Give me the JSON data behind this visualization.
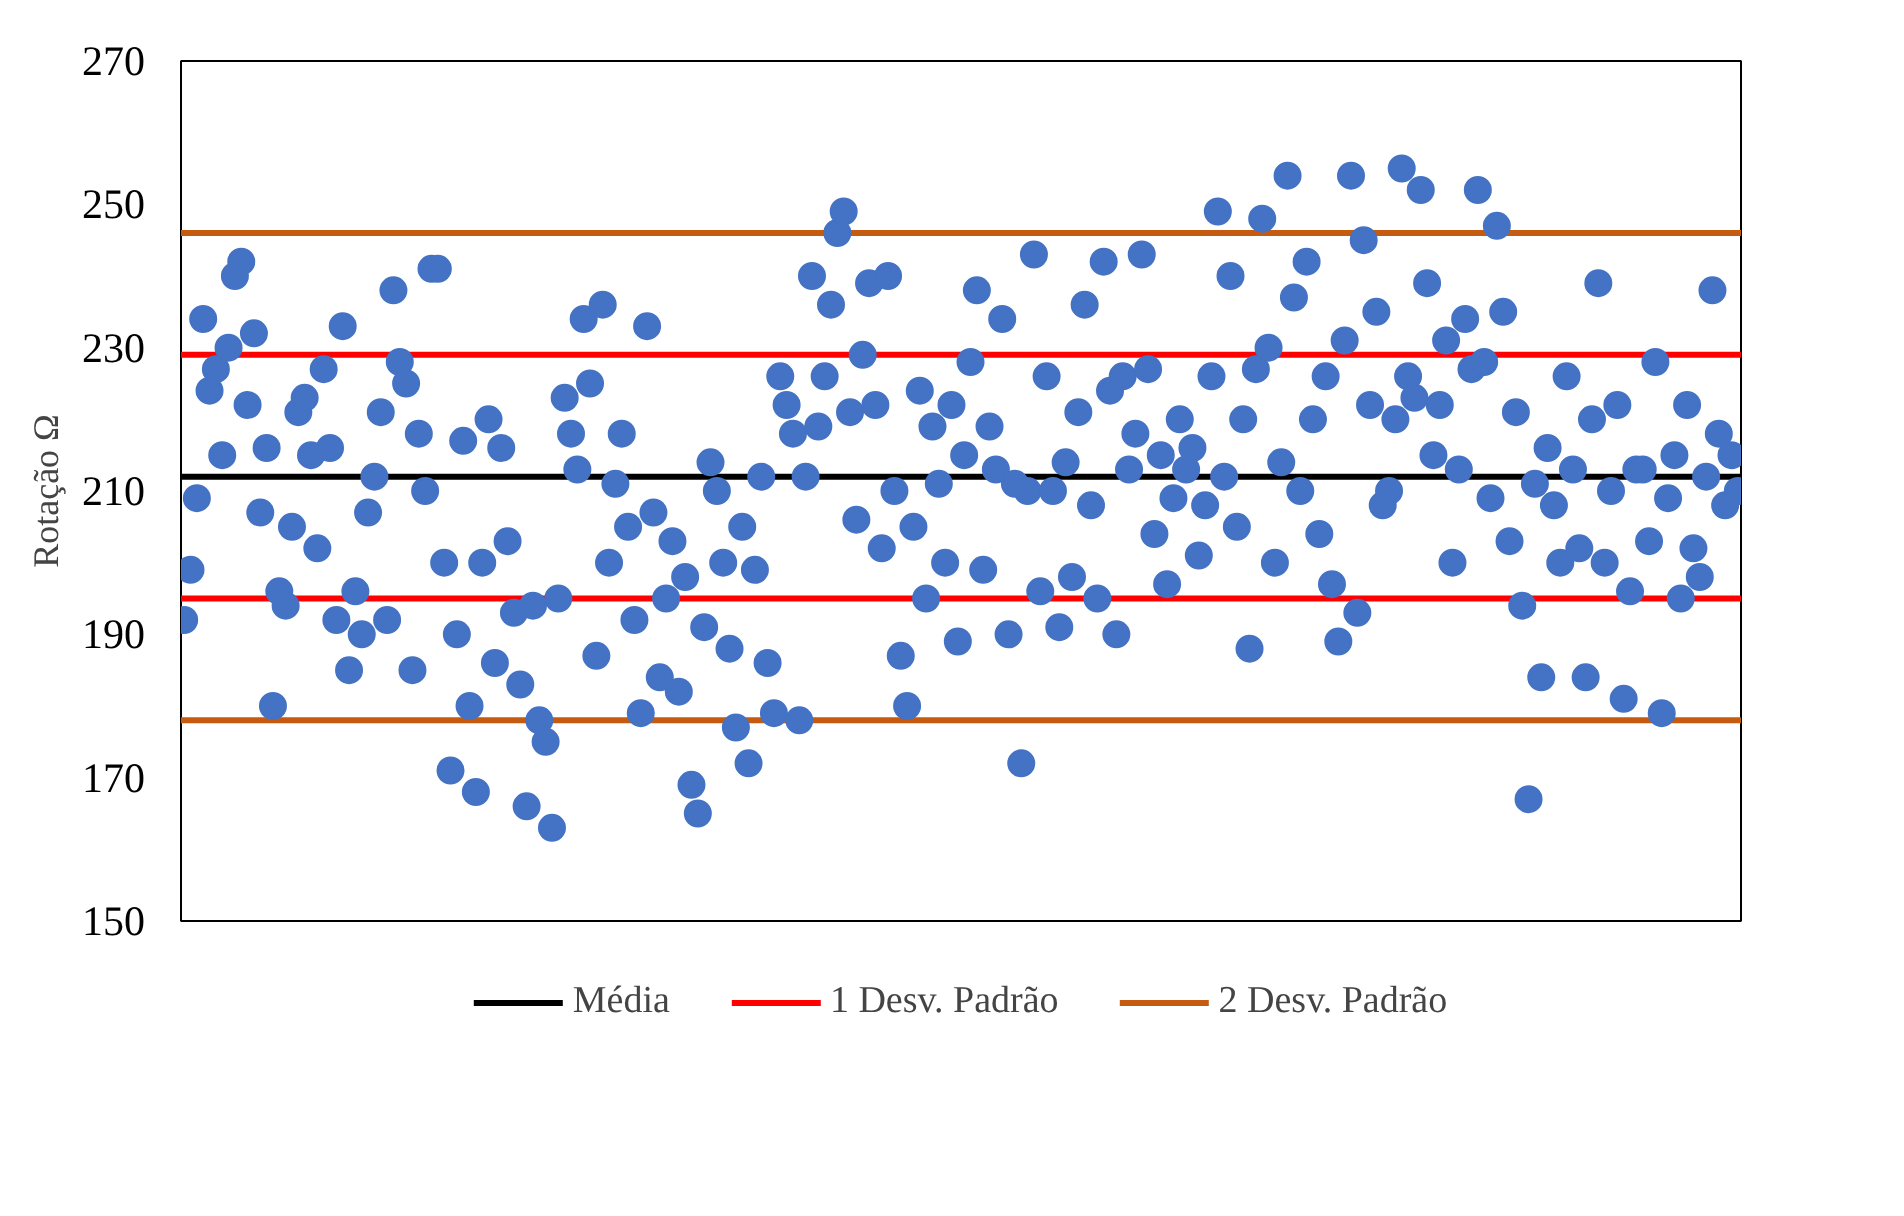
{
  "chart_data": {
    "type": "scatter",
    "ylabel": "Rotação Ω",
    "ylim": [
      150,
      270
    ],
    "yticks": [
      150,
      170,
      190,
      210,
      230,
      250,
      270
    ],
    "tick_labels": "y",
    "grid": false,
    "legend": "bottom",
    "marker": "circle",
    "color": "#4472c4",
    "categories": [
      null,
      null,
      null,
      null,
      null,
      null,
      null,
      null,
      null,
      null,
      null,
      null,
      null,
      null,
      null,
      null,
      null,
      null,
      null,
      null,
      null,
      null,
      null,
      null,
      null,
      null,
      null,
      null,
      null,
      null,
      null,
      null,
      null,
      null,
      null,
      null,
      null,
      null,
      null,
      null,
      null,
      null,
      null,
      null,
      null,
      null,
      null,
      null,
      null,
      null,
      null,
      null,
      null,
      null,
      null,
      null,
      null,
      null,
      null,
      null,
      null,
      null,
      null,
      null,
      null,
      null,
      null,
      null,
      null,
      null,
      null,
      null,
      null,
      null,
      null,
      null,
      null,
      null,
      null,
      null,
      null,
      null,
      null,
      null,
      null,
      null,
      null,
      null,
      null,
      null,
      null,
      null,
      null,
      null,
      null,
      null,
      null,
      null,
      null,
      null,
      null,
      null,
      null,
      null,
      null,
      null,
      null,
      null,
      null,
      null,
      null,
      null,
      null,
      null,
      null,
      null,
      null,
      null,
      null,
      null,
      null,
      null,
      null,
      null,
      null,
      null,
      null,
      null,
      null,
      null,
      null,
      null,
      null,
      null,
      null,
      null,
      null,
      null,
      null,
      null,
      null,
      null,
      null,
      null,
      null,
      null,
      null,
      null,
      null,
      null,
      null,
      null,
      null,
      null,
      null,
      null,
      null,
      null,
      null,
      null,
      null,
      null,
      null,
      null,
      null,
      null,
      null,
      null,
      null,
      null,
      null,
      null,
      null,
      null,
      null,
      null,
      null,
      null,
      null,
      null,
      null,
      null,
      null,
      null,
      null,
      null,
      null,
      null,
      null,
      null,
      null,
      null,
      null,
      null,
      null,
      null,
      null,
      null,
      null,
      null,
      null,
      null,
      null,
      null,
      null,
      null,
      null,
      null,
      null,
      null,
      null,
      null,
      null,
      null,
      null,
      null,
      null,
      null,
      null,
      null,
      null,
      null,
      null,
      null,
      null,
      null,
      null,
      null,
      null,
      null,
      null,
      null,
      null,
      null,
      null,
      null,
      null,
      null,
      null,
      null,
      null,
      null,
      null,
      null,
      null,
      null
    ],
    "values": [
      192,
      199,
      209,
      234,
      224,
      227,
      215,
      230,
      240,
      242,
      222,
      232,
      207,
      216,
      180,
      196,
      194,
      205,
      221,
      223,
      215,
      202,
      227,
      216,
      192,
      233,
      185,
      196,
      190,
      207,
      212,
      221,
      192,
      238,
      228,
      225,
      185,
      218,
      210,
      241,
      241,
      200,
      171,
      190,
      217,
      180,
      168,
      200,
      220,
      186,
      216,
      203,
      193,
      183,
      166,
      194,
      178,
      175,
      163,
      195,
      223,
      218,
      213,
      234,
      225,
      187,
      236,
      200,
      211,
      218,
      205,
      192,
      179,
      233,
      207,
      184,
      195,
      203,
      182,
      198,
      169,
      165,
      191,
      214,
      210,
      200,
      188,
      177,
      205,
      172,
      199,
      212,
      186,
      179,
      226,
      222,
      218,
      178,
      212,
      240,
      219,
      226,
      236,
      246,
      249,
      221,
      206,
      229,
      239,
      222,
      202,
      240,
      210,
      187,
      180,
      205,
      224,
      195,
      219,
      211,
      200,
      222,
      189,
      215,
      228,
      238,
      199,
      219,
      213,
      234,
      190,
      211,
      172,
      210,
      243,
      196,
      226,
      210,
      191,
      214,
      198,
      221,
      236,
      208,
      195,
      242,
      224,
      190,
      226,
      213,
      218,
      243,
      227,
      204,
      215,
      197,
      209,
      220,
      213,
      216,
      201,
      208,
      226,
      249,
      212,
      240,
      205,
      220,
      188,
      227,
      248,
      230,
      200,
      214,
      254,
      237,
      210,
      242,
      220,
      204,
      226,
      197,
      189,
      231,
      254,
      193,
      245,
      222,
      235,
      208,
      210,
      220,
      255,
      226,
      223,
      252,
      239,
      215,
      222,
      231,
      200,
      213,
      234,
      227,
      252,
      228,
      209,
      247,
      235,
      203,
      221,
      194,
      167,
      211,
      184,
      216,
      208,
      200,
      226,
      213,
      202,
      184,
      220,
      239,
      200,
      210,
      222,
      181,
      196,
      213,
      213,
      203,
      228,
      179,
      209,
      215,
      195,
      222,
      202,
      198,
      212,
      238,
      218,
      208,
      215,
      210
    ],
    "ref_lines": [
      {
        "axis": "y",
        "value": 212,
        "label": "Média",
        "color": "#000000"
      },
      {
        "axis": "y",
        "value": 229,
        "label": "1 Desv. Padrão",
        "color": "#ff0000"
      },
      {
        "axis": "y",
        "value": 195,
        "color": "#ff0000"
      },
      {
        "axis": "y",
        "value": 246,
        "label": "2 Desv. Padrão",
        "color": "#c55a11"
      },
      {
        "axis": "y",
        "value": 178,
        "color": "#c55a11"
      }
    ]
  }
}
